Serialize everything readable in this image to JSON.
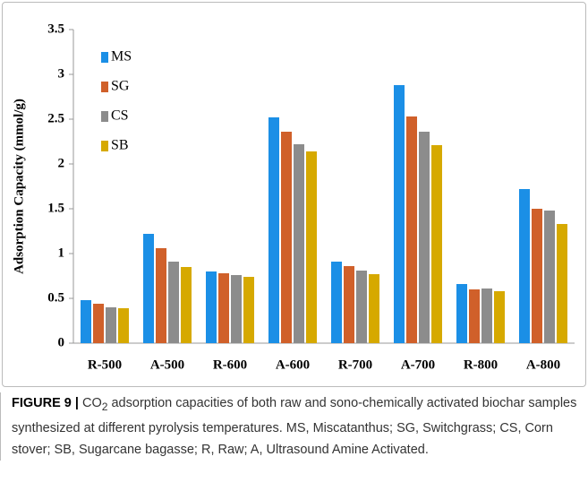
{
  "chart_data": {
    "type": "bar",
    "ylabel": "Adsorption Capacity (mmol/g)",
    "categories": [
      "R-500",
      "A-500",
      "R-600",
      "A-600",
      "R-700",
      "A-700",
      "R-800",
      "A-800"
    ],
    "series": [
      {
        "name": "MS",
        "color": "#1b8fe6",
        "values": [
          0.48,
          1.22,
          0.8,
          2.52,
          0.91,
          2.88,
          0.66,
          1.72
        ]
      },
      {
        "name": "SG",
        "color": "#d0602a",
        "values": [
          0.44,
          1.06,
          0.78,
          2.36,
          0.86,
          2.53,
          0.6,
          1.5
        ]
      },
      {
        "name": "CS",
        "color": "#8c8c8c",
        "values": [
          0.4,
          0.91,
          0.76,
          2.22,
          0.81,
          2.36,
          0.61,
          1.48
        ]
      },
      {
        "name": "SB",
        "color": "#d6a900",
        "values": [
          0.39,
          0.85,
          0.74,
          2.14,
          0.77,
          2.21,
          0.58,
          1.33
        ]
      }
    ],
    "ylim": [
      0,
      3.5
    ],
    "yticks": [
      0,
      0.5,
      1,
      1.5,
      2,
      2.5,
      3,
      3.5
    ],
    "grid": false,
    "legend": "top-left"
  },
  "caption": {
    "label": "FIGURE 9 |",
    "parts": [
      "CO",
      "2",
      " adsorption capacities of both raw and sono-chemically activated biochar samples synthesized at different pyrolysis temperatures. MS, Miscatanthus; SG, Switchgrass; CS, Corn stover; SB, Sugarcane bagasse; R, Raw; A, Ultrasound Amine Activated."
    ]
  }
}
